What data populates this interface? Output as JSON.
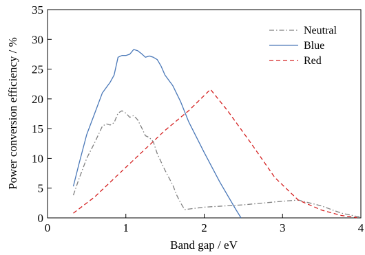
{
  "chart_data": {
    "type": "line",
    "xlabel": "Band gap / eV",
    "ylabel": "Power conversion efficiency / %",
    "xlim": [
      0,
      4
    ],
    "ylim": [
      0,
      35
    ],
    "xticks": [
      0,
      1,
      2,
      3,
      4
    ],
    "yticks": [
      0,
      5,
      10,
      15,
      20,
      25,
      30,
      35
    ],
    "grid": false,
    "legend_position": "top-right",
    "series": [
      {
        "name": "Neutral",
        "color": "#808080",
        "dash": "dashdot",
        "x": [
          0.33,
          0.4,
          0.5,
          0.6,
          0.7,
          0.75,
          0.8,
          0.85,
          0.9,
          0.95,
          1.0,
          1.05,
          1.1,
          1.15,
          1.2,
          1.25,
          1.3,
          1.35,
          1.4,
          1.5,
          1.6,
          1.65,
          1.7,
          1.75,
          2.0,
          2.5,
          3.0,
          3.2,
          3.5,
          3.75,
          4.0
        ],
        "y": [
          3.8,
          6.5,
          10.0,
          12.6,
          15.4,
          15.8,
          15.6,
          16.0,
          17.6,
          18.0,
          17.6,
          16.9,
          17.2,
          16.5,
          15.2,
          13.8,
          13.5,
          12.8,
          10.8,
          8.0,
          5.5,
          3.8,
          2.5,
          1.4,
          1.8,
          2.2,
          2.8,
          3.0,
          2.0,
          0.8,
          0.1
        ]
      },
      {
        "name": "Blue",
        "color": "#4a78b8",
        "dash": "solid",
        "x": [
          0.33,
          0.4,
          0.5,
          0.6,
          0.7,
          0.8,
          0.85,
          0.9,
          0.95,
          1.0,
          1.05,
          1.1,
          1.15,
          1.2,
          1.25,
          1.3,
          1.35,
          1.4,
          1.45,
          1.5,
          1.6,
          1.7,
          1.8,
          2.0,
          2.2,
          2.4,
          2.47
        ],
        "y": [
          5.3,
          9.0,
          14.0,
          17.5,
          21.0,
          22.8,
          24.0,
          27.0,
          27.3,
          27.3,
          27.5,
          28.3,
          28.1,
          27.6,
          27.0,
          27.2,
          27.0,
          26.6,
          25.5,
          24.0,
          22.2,
          19.5,
          16.2,
          11.0,
          6.0,
          1.5,
          0.0
        ]
      },
      {
        "name": "Red",
        "color": "#d42020",
        "dash": "dashed",
        "x": [
          0.33,
          0.6,
          1.0,
          1.5,
          1.8,
          2.08,
          2.3,
          2.6,
          2.9,
          3.2,
          3.5,
          3.75,
          3.95
        ],
        "y": [
          0.8,
          3.5,
          8.5,
          14.7,
          18.0,
          21.6,
          18.0,
          12.5,
          6.8,
          3.0,
          1.3,
          0.4,
          0.05
        ]
      }
    ]
  }
}
